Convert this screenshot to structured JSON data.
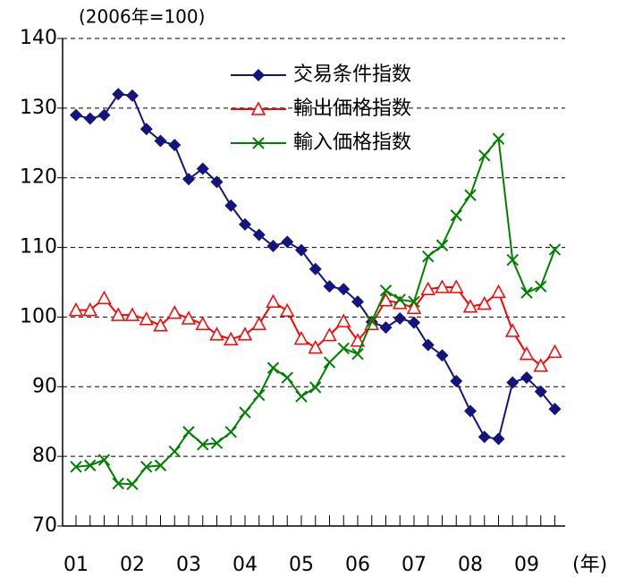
{
  "chart_data": {
    "type": "line",
    "y_label": "(2006年=100)",
    "x_label": "(年)",
    "categories": [
      "01",
      null,
      null,
      null,
      "02",
      null,
      null,
      null,
      "03",
      null,
      null,
      null,
      "04",
      null,
      null,
      null,
      "05",
      null,
      null,
      null,
      "06",
      null,
      null,
      null,
      "07",
      null,
      null,
      null,
      "08",
      null,
      null,
      null,
      "09",
      null,
      null
    ],
    "series": [
      {
        "name": "交易条件指数",
        "color": "#14147f",
        "marker": "diamond",
        "values": [
          129,
          128.5,
          129,
          132,
          131.8,
          127,
          125.3,
          124.7,
          119.8,
          121.3,
          119.4,
          116,
          113.3,
          111.8,
          110.2,
          110.8,
          109.6,
          106.9,
          104.4,
          104,
          102.2,
          99.3,
          98.5,
          99.8,
          99.2,
          96,
          94.5,
          90.8,
          86.5,
          82.8,
          82.5,
          90.6,
          91.3,
          89.3,
          86.8
        ]
      },
      {
        "name": "輸出価格指数",
        "color": "#ff0000",
        "marker": "triangle",
        "values": [
          101,
          101,
          102.7,
          100.3,
          100.3,
          99.7,
          98.8,
          100.6,
          99.8,
          99,
          97.5,
          96.8,
          97.5,
          99,
          102.2,
          100.9,
          96.9,
          95.6,
          97.4,
          99.4,
          96.6,
          99,
          102.4,
          102,
          101.3,
          104,
          104.3,
          104.3,
          101.5,
          101.9,
          103.6,
          98,
          94.7,
          93,
          95
        ]
      },
      {
        "name": "輸入価格指数",
        "color": "#008000",
        "marker": "x",
        "values": [
          78.5,
          78.7,
          79.5,
          76.1,
          76,
          78.5,
          78.7,
          80.7,
          83.5,
          81.7,
          81.9,
          83.5,
          86.3,
          88.8,
          92.7,
          91.3,
          88.6,
          89.9,
          93.5,
          95.5,
          94.7,
          99.4,
          103.8,
          102.5,
          102.2,
          108.7,
          110.3,
          114.6,
          117.5,
          123.2,
          125.6,
          108.2,
          103.5,
          104.4,
          109.7
        ]
      }
    ],
    "ylim": [
      70,
      140
    ],
    "yticks": [
      70,
      80,
      90,
      100,
      110,
      120,
      130,
      140
    ],
    "grid": true
  }
}
